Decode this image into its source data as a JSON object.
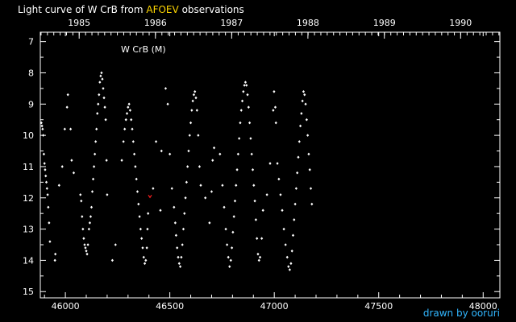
{
  "title": {
    "prefix": "Light curve of W CrB from",
    "source": "AFOEV",
    "suffix": "observations"
  },
  "credit": "drawn by ooruri",
  "colors": {
    "background": "#000000",
    "axes": "#ffffff",
    "points": "#ffffff",
    "source": "#ffd700",
    "credit": "#31b6ff",
    "special_point": "#ff2020"
  },
  "chart_data": {
    "type": "scatter",
    "title": "Light curve of W CrB from AFOEV observations",
    "annotation": "W CrB (M)",
    "xlabel": "",
    "ylabel": "",
    "xlim": [
      45880,
      48080
    ],
    "ylim": [
      15.2,
      6.7
    ],
    "y_inverted": true,
    "x_ticks": [
      46000,
      46500,
      47000,
      47500,
      48000
    ],
    "x_tick_labels": [
      "46000",
      "46500",
      "47000",
      "47500",
      "48000"
    ],
    "y_ticks": [
      7,
      8,
      9,
      10,
      11,
      12,
      13,
      14,
      15
    ],
    "y_tick_labels": [
      "7",
      "8",
      "9",
      "10",
      "11",
      "12",
      "13",
      "14",
      "15"
    ],
    "top_axis_years": [
      {
        "label": "1985",
        "jd": 46066
      },
      {
        "label": "1986",
        "jd": 46431
      },
      {
        "label": "1987",
        "jd": 46796
      },
      {
        "label": "1988",
        "jd": 47161
      },
      {
        "label": "1989",
        "jd": 47527
      },
      {
        "label": "1990",
        "jd": 47892
      }
    ],
    "grid": false,
    "special_point": {
      "x": 46405,
      "y": 11.95
    },
    "series": [
      {
        "points": [
          [
            45885,
            9.6
          ],
          [
            45888,
            9.7
          ],
          [
            45891,
            9.8
          ],
          [
            45894,
            10.0
          ],
          [
            45897,
            10.6
          ],
          [
            45900,
            10.9
          ],
          [
            45903,
            11.1
          ],
          [
            45906,
            11.3
          ],
          [
            45909,
            11.5
          ],
          [
            45912,
            11.7
          ],
          [
            45915,
            11.9
          ],
          [
            45918,
            12.3
          ],
          [
            45922,
            12.8
          ],
          [
            45926,
            13.4
          ],
          [
            45950,
            14.0
          ],
          [
            45952,
            13.8
          ],
          [
            45970,
            11.6
          ],
          [
            45985,
            11.0
          ],
          [
            45997,
            9.8
          ],
          [
            46008,
            9.1
          ],
          [
            46012,
            8.7
          ],
          [
            46025,
            9.8
          ],
          [
            46030,
            10.8
          ],
          [
            46040,
            11.2
          ],
          [
            46072,
            11.9
          ],
          [
            46076,
            12.1
          ],
          [
            46080,
            12.6
          ],
          [
            46084,
            13.0
          ],
          [
            46088,
            13.3
          ],
          [
            46092,
            13.5
          ],
          [
            46096,
            13.6
          ],
          [
            46100,
            13.7
          ],
          [
            46104,
            13.8
          ],
          [
            46108,
            13.5
          ],
          [
            46113,
            13.0
          ],
          [
            46117,
            12.8
          ],
          [
            46121,
            12.6
          ],
          [
            46125,
            12.3
          ],
          [
            46129,
            11.8
          ],
          [
            46133,
            11.4
          ],
          [
            46137,
            11.0
          ],
          [
            46141,
            10.6
          ],
          [
            46145,
            10.2
          ],
          [
            46149,
            9.8
          ],
          [
            46153,
            9.3
          ],
          [
            46157,
            9.0
          ],
          [
            46161,
            8.7
          ],
          [
            46165,
            8.3
          ],
          [
            46169,
            8.1
          ],
          [
            46173,
            8.0
          ],
          [
            46177,
            8.2
          ],
          [
            46181,
            8.5
          ],
          [
            46185,
            8.8
          ],
          [
            46189,
            9.1
          ],
          [
            46193,
            9.5
          ],
          [
            46197,
            10.8
          ],
          [
            46200,
            11.9
          ],
          [
            46225,
            14.0
          ],
          [
            46240,
            13.5
          ],
          [
            46270,
            10.8
          ],
          [
            46278,
            10.2
          ],
          [
            46284,
            9.8
          ],
          [
            46290,
            9.5
          ],
          [
            46295,
            9.3
          ],
          [
            46300,
            9.1
          ],
          [
            46305,
            9.0
          ],
          [
            46310,
            9.2
          ],
          [
            46315,
            9.5
          ],
          [
            46320,
            9.8
          ],
          [
            46325,
            10.2
          ],
          [
            46330,
            10.6
          ],
          [
            46335,
            11.0
          ],
          [
            46340,
            11.4
          ],
          [
            46345,
            11.8
          ],
          [
            46350,
            12.2
          ],
          [
            46355,
            12.6
          ],
          [
            46360,
            13.0
          ],
          [
            46365,
            13.3
          ],
          [
            46370,
            13.6
          ],
          [
            46375,
            13.9
          ],
          [
            46380,
            14.1
          ],
          [
            46385,
            14.0
          ],
          [
            46390,
            13.6
          ],
          [
            46393,
            13.0
          ],
          [
            46396,
            12.5
          ],
          [
            46420,
            11.7
          ],
          [
            46434,
            10.2
          ],
          [
            46455,
            12.4
          ],
          [
            46460,
            10.5
          ],
          [
            46480,
            8.5
          ],
          [
            46490,
            9.0
          ],
          [
            46500,
            10.6
          ],
          [
            46510,
            11.7
          ],
          [
            46520,
            12.3
          ],
          [
            46526,
            12.8
          ],
          [
            46530,
            13.2
          ],
          [
            46535,
            13.6
          ],
          [
            46540,
            13.9
          ],
          [
            46545,
            14.1
          ],
          [
            46550,
            14.2
          ],
          [
            46555,
            13.9
          ],
          [
            46560,
            13.5
          ],
          [
            46565,
            13.0
          ],
          [
            46570,
            12.5
          ],
          [
            46575,
            12.0
          ],
          [
            46580,
            11.5
          ],
          [
            46585,
            11.0
          ],
          [
            46590,
            10.5
          ],
          [
            46595,
            10.0
          ],
          [
            46600,
            9.6
          ],
          [
            46605,
            9.2
          ],
          [
            46610,
            8.9
          ],
          [
            46615,
            8.7
          ],
          [
            46620,
            8.6
          ],
          [
            46625,
            8.8
          ],
          [
            46630,
            9.2
          ],
          [
            46636,
            10.0
          ],
          [
            46642,
            11.0
          ],
          [
            46648,
            11.6
          ],
          [
            46670,
            12.0
          ],
          [
            46690,
            12.8
          ],
          [
            46700,
            11.8
          ],
          [
            46705,
            10.8
          ],
          [
            46712,
            10.4
          ],
          [
            46740,
            10.6
          ],
          [
            46752,
            11.6
          ],
          [
            46760,
            12.3
          ],
          [
            46768,
            13.0
          ],
          [
            46774,
            13.5
          ],
          [
            46780,
            13.9
          ],
          [
            46786,
            14.2
          ],
          [
            46792,
            14.0
          ],
          [
            46797,
            13.6
          ],
          [
            46802,
            13.1
          ],
          [
            46807,
            12.6
          ],
          [
            46812,
            12.1
          ],
          [
            46817,
            11.6
          ],
          [
            46822,
            11.1
          ],
          [
            46827,
            10.6
          ],
          [
            46832,
            10.1
          ],
          [
            46837,
            9.6
          ],
          [
            46842,
            9.2
          ],
          [
            46847,
            8.9
          ],
          [
            46852,
            8.6
          ],
          [
            46857,
            8.4
          ],
          [
            46862,
            8.3
          ],
          [
            46867,
            8.4
          ],
          [
            46872,
            8.7
          ],
          [
            46877,
            9.1
          ],
          [
            46882,
            9.6
          ],
          [
            46887,
            10.1
          ],
          [
            46892,
            10.6
          ],
          [
            46897,
            11.1
          ],
          [
            46902,
            11.6
          ],
          [
            46907,
            12.1
          ],
          [
            46912,
            12.7
          ],
          [
            46917,
            13.3
          ],
          [
            46922,
            13.8
          ],
          [
            46927,
            14.0
          ],
          [
            46932,
            13.9
          ],
          [
            46940,
            13.3
          ],
          [
            46946,
            12.4
          ],
          [
            46965,
            11.9
          ],
          [
            46980,
            10.9
          ],
          [
            46995,
            9.2
          ],
          [
            46999,
            8.6
          ],
          [
            47005,
            9.1
          ],
          [
            47008,
            9.6
          ],
          [
            47015,
            10.9
          ],
          [
            47022,
            11.4
          ],
          [
            47030,
            11.9
          ],
          [
            47038,
            12.4
          ],
          [
            47046,
            13.0
          ],
          [
            47054,
            13.5
          ],
          [
            47062,
            13.9
          ],
          [
            47068,
            14.2
          ],
          [
            47074,
            14.3
          ],
          [
            47080,
            14.1
          ],
          [
            47085,
            13.7
          ],
          [
            47090,
            13.2
          ],
          [
            47095,
            12.7
          ],
          [
            47100,
            12.2
          ],
          [
            47105,
            11.7
          ],
          [
            47110,
            11.2
          ],
          [
            47115,
            10.7
          ],
          [
            47120,
            10.2
          ],
          [
            47125,
            9.7
          ],
          [
            47130,
            9.3
          ],
          [
            47135,
            8.9
          ],
          [
            47140,
            8.6
          ],
          [
            47145,
            8.7
          ],
          [
            47150,
            9.0
          ],
          [
            47155,
            9.5
          ],
          [
            47160,
            10.0
          ],
          [
            47165,
            10.6
          ],
          [
            47170,
            11.1
          ],
          [
            47175,
            11.7
          ],
          [
            47180,
            12.2
          ]
        ]
      }
    ]
  }
}
